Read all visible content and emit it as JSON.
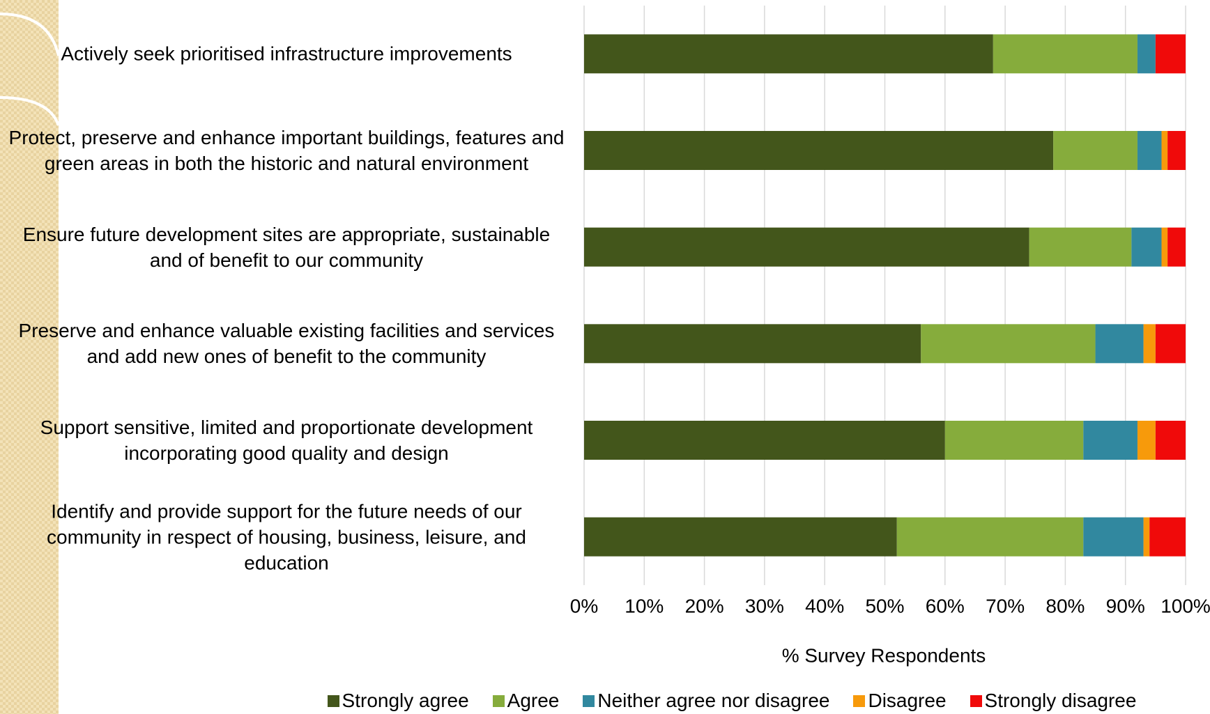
{
  "chart_data": {
    "type": "stacked-bar-horizontal",
    "categories": [
      "Actively seek prioritised infrastructure improvements",
      "Protect, preserve and enhance important buildings, features and green areas in both the historic and natural environment",
      "Ensure future development sites are appropriate, sustainable and of benefit to our community",
      "Preserve and enhance valuable existing facilities and services and add new ones of benefit to the community",
      "Support sensitive, limited and proportionate development incorporating good quality and design",
      "Identify and provide support for the future needs of our community in respect of housing, business, leisure, and education"
    ],
    "series": [
      {
        "name": "Strongly agree",
        "color": "#43561b",
        "values": [
          68,
          78,
          74,
          56,
          60,
          52
        ]
      },
      {
        "name": "Agree",
        "color": "#86ac3c",
        "values": [
          24,
          14,
          17,
          29,
          23,
          31
        ]
      },
      {
        "name": "Neither agree nor disagree",
        "color": "#31889f",
        "values": [
          3,
          4,
          5,
          8,
          9,
          10
        ]
      },
      {
        "name": "Disagree",
        "color": "#f79a0b",
        "values": [
          0,
          1,
          1,
          2,
          3,
          1
        ]
      },
      {
        "name": "Strongly disagree",
        "color": "#f00a0a",
        "values": [
          5,
          3,
          3,
          5,
          5,
          6
        ]
      }
    ],
    "xlim": [
      0,
      100
    ],
    "xticks": [
      {
        "value": 0,
        "label": "0%"
      },
      {
        "value": 10,
        "label": "10%"
      },
      {
        "value": 20,
        "label": "20%"
      },
      {
        "value": 30,
        "label": "30%"
      },
      {
        "value": 40,
        "label": "40%"
      },
      {
        "value": 50,
        "label": "50%"
      },
      {
        "value": 60,
        "label": "60%"
      },
      {
        "value": 70,
        "label": "70%"
      },
      {
        "value": 80,
        "label": "80%"
      },
      {
        "value": 90,
        "label": "90%"
      },
      {
        "value": 100,
        "label": "100%"
      }
    ],
    "xlabel": "% Survey Respondents",
    "grid": true,
    "legend": "bottom"
  }
}
